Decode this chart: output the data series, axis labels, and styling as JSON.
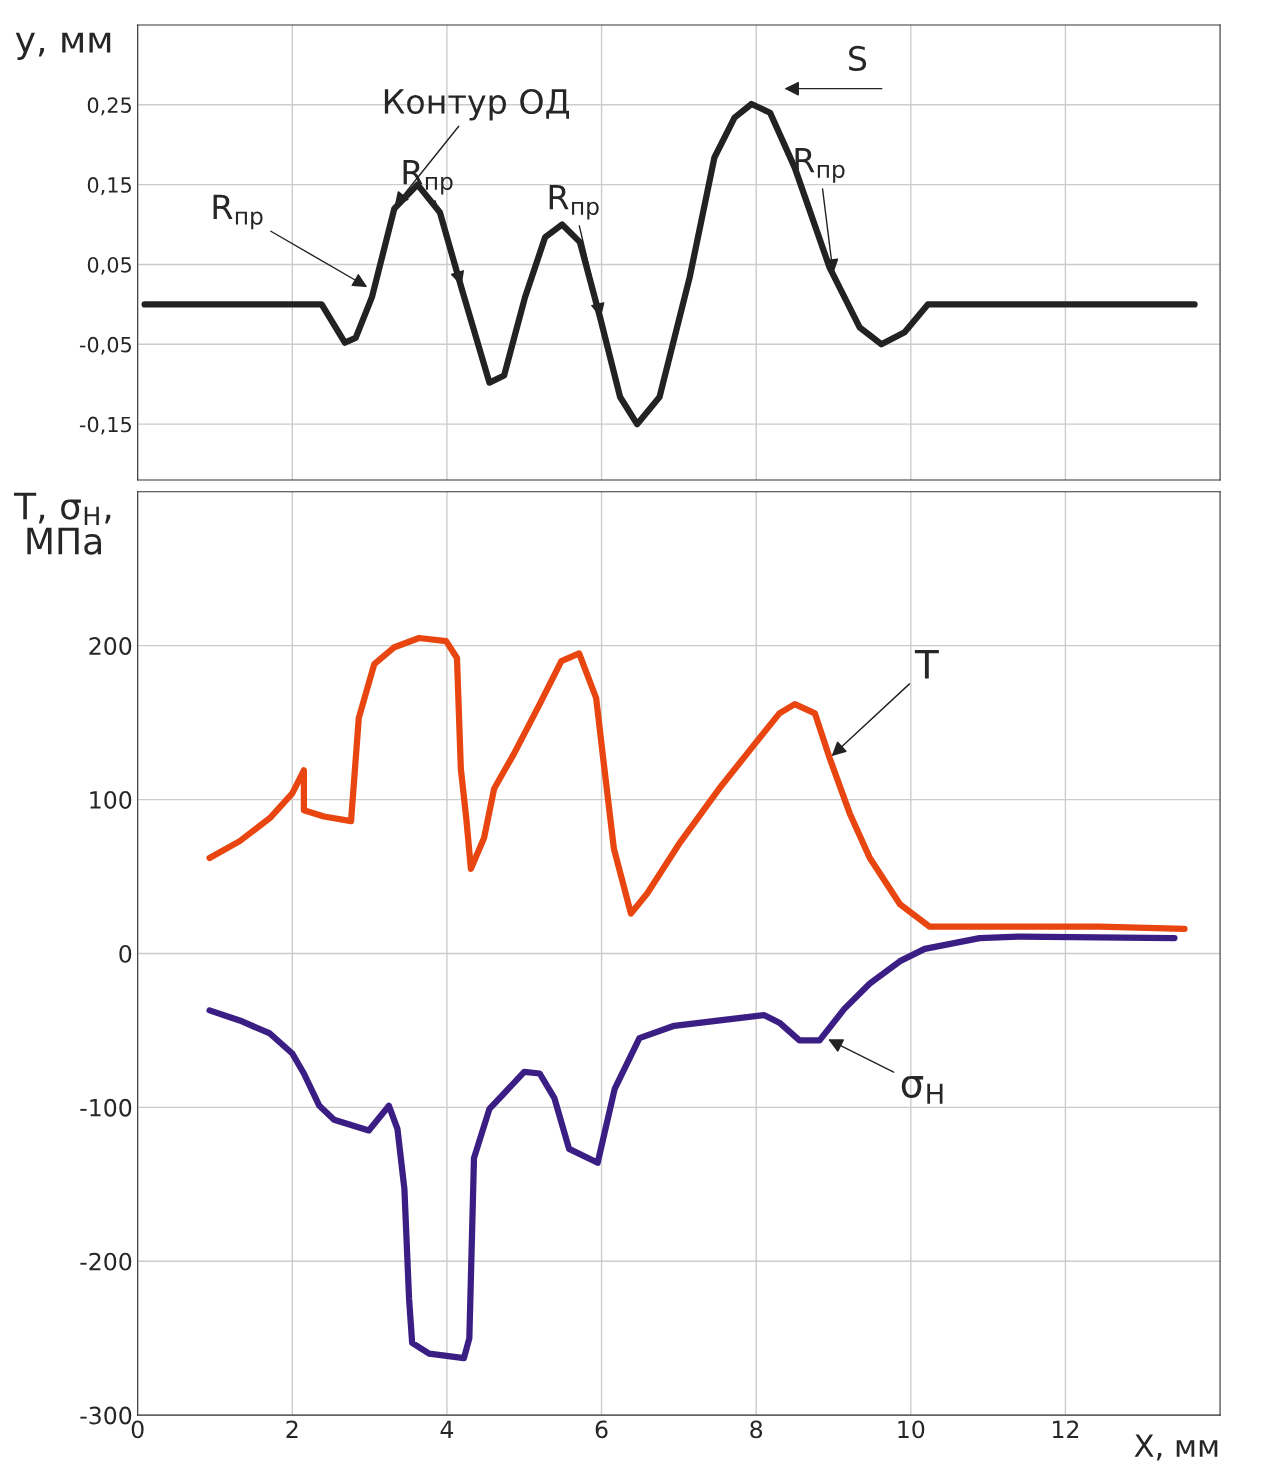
{
  "chart_data": [
    {
      "type": "line",
      "ylabel": "y, мм",
      "xlim": [
        0,
        14
      ],
      "ylim": [
        -0.22,
        0.35
      ],
      "xticks": [
        0,
        2,
        4,
        6,
        8,
        10,
        12
      ],
      "yticks": [
        {
          "value": -0.15,
          "label": "-0,15"
        },
        {
          "value": -0.05,
          "label": "-0,05"
        },
        {
          "value": 0.05,
          "label": "0,05"
        },
        {
          "value": 0.15,
          "label": "0,15"
        },
        {
          "value": 0.25,
          "label": "0,25"
        }
      ],
      "tick_labels": "y",
      "grid": true,
      "series": [
        {
          "color": "#222222",
          "x": [
            0.09,
            2.38,
            2.68,
            2.82,
            3.03,
            3.32,
            3.62,
            3.91,
            4.19,
            4.55,
            4.74,
            5.01,
            5.27,
            5.49,
            5.72,
            5.98,
            6.24,
            6.46,
            6.75,
            7.14,
            7.46,
            7.72,
            7.94,
            8.18,
            8.5,
            8.95,
            9.34,
            9.62,
            9.92,
            10.22,
            13.67
          ],
          "values": [
            0,
            0,
            -0.048,
            -0.042,
            0.009,
            0.12,
            0.15,
            0.115,
            0.02,
            -0.098,
            -0.089,
            0.009,
            0.084,
            0.1,
            0.078,
            -0.016,
            -0.116,
            -0.15,
            -0.116,
            0.034,
            0.184,
            0.234,
            0.251,
            0.24,
            0.171,
            0.046,
            -0.029,
            -0.05,
            -0.035,
            0,
            0
          ]
        }
      ],
      "annotations": [
        {
          "text": "Контур ОД",
          "x": 3.3,
          "y": 0.12
        },
        {
          "text": "R$_{пр}$",
          "x": 3.0,
          "y": 0.02
        },
        {
          "text": "R$_{пр}$",
          "x": 4.2,
          "y": 0.02
        },
        {
          "text": "R$_{пр}$",
          "x": 6.0,
          "y": -0.02
        },
        {
          "text": "R$_{пр}$",
          "x": 9.0,
          "y": 0.035
        },
        "S"
      ]
    },
    {
      "type": "line",
      "ylabel": "T, σ$_{Н}$,\nМПа",
      "xlabel": "X, мм",
      "xlim": [
        0,
        14
      ],
      "ylim": [
        -300,
        300
      ],
      "xticks": [
        0,
        2,
        4,
        6,
        8,
        10,
        12
      ],
      "yticks": [
        -300,
        -200,
        -100,
        0,
        100,
        200
      ],
      "grid": true,
      "series": [
        {
          "color": "#e84510",
          "x": [
            0.93,
            1.32,
            1.71,
            2.0,
            2.15,
            2.15,
            2.41,
            2.76,
            2.86,
            3.06,
            3.32,
            3.64,
            3.99,
            4.13,
            4.18,
            4.25,
            4.31,
            4.48,
            4.61,
            4.87,
            5.2,
            5.48,
            5.71,
            5.93,
            6.03,
            6.16,
            6.38,
            6.59,
            7.0,
            7.52,
            7.98,
            8.3,
            8.5,
            8.76,
            8.95,
            9.21,
            9.47,
            9.86,
            10.24,
            12.44,
            13.54
          ],
          "values": [
            62,
            73,
            88,
            104,
            119,
            93,
            89,
            86,
            153,
            188,
            199,
            205,
            203,
            192,
            120,
            88,
            55,
            75,
            107,
            130,
            162,
            190,
            195,
            166,
            123,
            68,
            26,
            39,
            71,
            107,
            136,
            156,
            162,
            156,
            127,
            91,
            62,
            32,
            17.5,
            17.5,
            16
          ]
        },
        {
          "color": "#3b1e84",
          "x": [
            0.93,
            1.32,
            1.71,
            2.0,
            2.15,
            2.35,
            2.54,
            2.99,
            3.25,
            3.36,
            3.45,
            3.51,
            3.55,
            3.77,
            4.22,
            4.29,
            4.35,
            4.55,
            5.0,
            5.2,
            5.39,
            5.58,
            5.95,
            6.17,
            6.49,
            6.94,
            8.1,
            8.3,
            8.56,
            8.82,
            9.14,
            9.47,
            9.86,
            10.18,
            10.89,
            11.41,
            13.41
          ],
          "values": [
            -37,
            -43.5,
            -52,
            -65,
            -78,
            -99,
            -108,
            -115,
            -99,
            -114,
            -153,
            -224,
            -253,
            -260,
            -263,
            -250,
            -133,
            -101,
            -77,
            -78,
            -94,
            -127,
            -136,
            -88,
            -55,
            -47,
            -40,
            -45,
            -56.5,
            -56.5,
            -36,
            -19.5,
            -5,
            3,
            10,
            11,
            10
          ]
        }
      ],
      "annotations": [
        {
          "text": "T",
          "x": 8.95,
          "y": 127
        },
        {
          "text": "σ$_{Н}$",
          "x": 8.9,
          "y": -55
        }
      ]
    }
  ]
}
